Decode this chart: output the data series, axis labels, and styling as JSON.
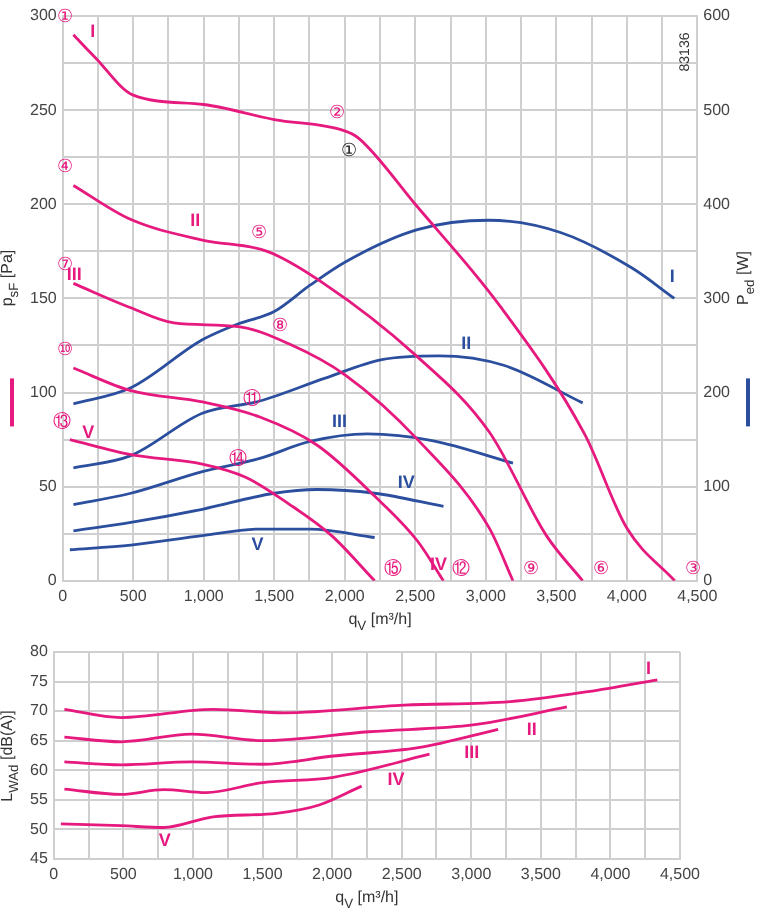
{
  "chart_data": [
    {
      "type": "line",
      "xlabel": "q$_{V}$ [m³/h]",
      "ylabel": "p$_{sF}$ [Pa]",
      "y2label": "P$_{ed}$ [W]",
      "xlim": [
        0,
        4500
      ],
      "xticks": [
        {
          "value": 0,
          "label": "0"
        },
        {
          "value": 250,
          "label": null
        },
        500,
        {
          "value": 750,
          "label": null
        },
        {
          "value": 1000,
          "label": "1,000"
        },
        {
          "value": 1250,
          "label": null
        },
        {
          "value": 1500,
          "label": "1,500"
        },
        {
          "value": 1750,
          "label": null
        },
        {
          "value": 2000,
          "label": "2,000"
        },
        {
          "value": 2250,
          "label": null
        },
        {
          "value": 2500,
          "label": "2,500"
        },
        {
          "value": 2750,
          "label": null
        },
        {
          "value": 3000,
          "label": "3,000"
        },
        {
          "value": 3250,
          "label": null
        },
        {
          "value": 3500,
          "label": "3,500"
        },
        {
          "value": 3750,
          "label": null
        },
        {
          "value": 4000,
          "label": "4,000"
        },
        {
          "value": 4250,
          "label": null
        },
        {
          "value": 4500,
          "label": "4,500"
        }
      ],
      "ylim": [
        0,
        300
      ],
      "yticks": [
        {
          "value": 0,
          "label": "0"
        },
        {
          "value": 25,
          "label": null
        },
        50,
        {
          "value": 75,
          "label": null
        },
        100,
        {
          "value": 125,
          "label": null
        },
        150,
        {
          "value": 175,
          "label": null
        },
        200,
        {
          "value": 225,
          "label": null
        },
        250,
        {
          "value": 275,
          "label": null
        },
        300
      ],
      "y2lim": [
        0,
        600
      ],
      "y2ticks": [
        {
          "value": 0,
          "label": "0"
        },
        100,
        200,
        300,
        400,
        500,
        600
      ],
      "grid": true,
      "series": [
        {
          "name": "I",
          "color": "#e6197e",
          "x": [
            76,
            230,
            500,
            1000,
            1500,
            2000,
            2100,
            2500,
            3100,
            3700,
            4000,
            4340
          ],
          "values": [
            290,
            278,
            258,
            253,
            245,
            239,
            235,
            200,
            146,
            78,
            28,
            0
          ]
        },
        {
          "name": "II",
          "color": "#e6197e",
          "x": [
            76,
            480,
            990,
            1450,
            1850,
            2500,
            3025,
            3430,
            3687
          ],
          "values": [
            210,
            192,
            181,
            175,
            158,
            120,
            79,
            24,
            0
          ]
        },
        {
          "name": "III",
          "color": "#e6197e",
          "x": [
            76,
            483,
            788,
            1246,
            1600,
            2009,
            2517,
            3025,
            3193
          ],
          "values": [
            158,
            145,
            137,
            135,
            126,
            109,
            75,
            28,
            0
          ]
        },
        {
          "name": "IV",
          "color": "#e6197e",
          "x": [
            76,
            483,
            990,
            1398,
            1805,
            2212,
            2517,
            2700
          ],
          "values": [
            113,
            101,
            95,
            87,
            72,
            45,
            21,
            0
          ]
        },
        {
          "name": "V",
          "color": "#e6197e",
          "x": [
            51,
            483,
            990,
            1297,
            1600,
            1907,
            2212
          ],
          "values": [
            75,
            67,
            62,
            55,
            41,
            24,
            0
          ]
        },
        {
          "name": "I",
          "axis": "y2",
          "color": "#2b4f9e",
          "x": [
            76,
            483,
            990,
            1246,
            1500,
            1754,
            2007,
            2515,
            3023,
            3530,
            4040,
            4337
          ],
          "values": [
            188,
            205,
            256,
            273,
            286,
            314,
            339,
            373,
            383,
            370,
            332,
            300
          ]
        },
        {
          "name": "II",
          "axis": "y2",
          "color": "#2b4f9e",
          "x": [
            76,
            483,
            990,
            1398,
            1856,
            2263,
            2670,
            3127,
            3687
          ],
          "values": [
            120,
            133,
            178,
            191,
            215,
            235,
            239,
            229,
            189
          ]
        },
        {
          "name": "III",
          "axis": "y2",
          "color": "#2b4f9e",
          "x": [
            76,
            483,
            990,
            1398,
            1754,
            2161,
            2619,
            3193
          ],
          "values": [
            81,
            93,
            116,
            130,
            148,
            156,
            149,
            125
          ]
        },
        {
          "name": "IV",
          "axis": "y2",
          "color": "#2b4f9e",
          "x": [
            76,
            483,
            990,
            1500,
            1805,
            2212,
            2700
          ],
          "values": [
            53,
            62,
            76,
            93,
            97,
            93,
            79
          ]
        },
        {
          "name": "V",
          "axis": "y2",
          "color": "#2b4f9e",
          "x": [
            51,
            483,
            990,
            1398,
            1754,
            2212
          ],
          "values": [
            33,
            38,
            48,
            55,
            55,
            46
          ]
        }
      ],
      "annotations": [
        "83136",
        {
          "text": "①",
          "x": 76,
          "y": 290
        },
        {
          "text": "②",
          "x": 2000,
          "y": 239
        },
        {
          "text": "③",
          "x": 4340,
          "y": 0
        },
        {
          "text": "④",
          "x": 76,
          "y": 210
        },
        {
          "text": "⑤",
          "x": 1450,
          "y": 175
        },
        {
          "text": "⑥",
          "x": 3687,
          "y": 0
        },
        {
          "text": "⑦",
          "x": 76,
          "y": 158
        },
        {
          "text": "⑧",
          "x": 1600,
          "y": 126
        },
        {
          "text": "⑨",
          "x": 3193,
          "y": 0
        },
        {
          "text": "⑩",
          "x": 76,
          "y": 113
        },
        {
          "text": "⑪",
          "x": 1398,
          "y": 87
        },
        {
          "text": "⑫",
          "x": 2700,
          "y": 0
        },
        {
          "text": "⑬",
          "x": 51,
          "y": 75
        },
        {
          "text": "⑭",
          "x": 1297,
          "y": 55
        },
        {
          "text": "⑮",
          "x": 2212,
          "y": 0
        },
        {
          "text": "①",
          "x": 2000,
          "y": 239
        }
      ]
    },
    {
      "type": "line",
      "xlabel": "q$_{V}$ [m³/h]",
      "ylabel": "L$_{WAd}$ [dB(A)]",
      "xlim": [
        0,
        4500
      ],
      "xticks": [
        {
          "value": 0,
          "label": "0"
        },
        {
          "value": 250,
          "label": null
        },
        500,
        {
          "value": 750,
          "label": null
        },
        {
          "value": 1000,
          "label": "1,000"
        },
        {
          "value": 1250,
          "label": null
        },
        {
          "value": 1500,
          "label": "1,500"
        },
        {
          "value": 1750,
          "label": null
        },
        {
          "value": 2000,
          "label": "2,000"
        },
        {
          "value": 2250,
          "label": null
        },
        {
          "value": 2500,
          "label": "2,500"
        },
        {
          "value": 2750,
          "label": null
        },
        {
          "value": 3000,
          "label": "3,000"
        },
        {
          "value": 3250,
          "label": null
        },
        {
          "value": 3500,
          "label": "3,500"
        },
        {
          "value": 3750,
          "label": null
        },
        {
          "value": 4000,
          "label": "4,000"
        },
        {
          "value": 4250,
          "label": null
        },
        {
          "value": 4500,
          "label": "4,500"
        }
      ],
      "ylim": [
        45,
        80
      ],
      "yticks": [
        45,
        50,
        55,
        60,
        65,
        70,
        75,
        80
      ],
      "grid": true,
      "series": [
        {
          "name": "I",
          "color": "#e6197e",
          "x": [
            76,
            483,
            1144,
            1653,
            2517,
            3280,
            3840,
            4337
          ],
          "values": [
            70.3,
            68.9,
            70.3,
            69.7,
            71,
            71.6,
            73.3,
            75.3
          ]
        },
        {
          "name": "II",
          "color": "#e6197e",
          "x": [
            76,
            483,
            990,
            1500,
            2263,
            3025,
            3687
          ],
          "values": [
            65.6,
            64.8,
            66.1,
            65,
            66.5,
            67.7,
            70.7
          ]
        },
        {
          "name": "III",
          "color": "#e6197e",
          "x": [
            76,
            483,
            990,
            1500,
            2009,
            2619,
            3193
          ],
          "values": [
            61.4,
            60.9,
            61.4,
            61,
            62.4,
            63.8,
            66.9
          ]
        },
        {
          "name": "IV",
          "color": "#e6197e",
          "x": [
            76,
            483,
            788,
            1093,
            1500,
            2009,
            2700
          ],
          "values": [
            56.8,
            55.9,
            56.7,
            56.2,
            57.9,
            58.8,
            62.7
          ]
        },
        {
          "name": "V",
          "color": "#e6197e",
          "x": [
            51,
            483,
            788,
            1144,
            1600,
            1907,
            2212
          ],
          "values": [
            50.9,
            50.6,
            50.3,
            52.1,
            52.7,
            54.1,
            57.3
          ]
        }
      ]
    }
  ]
}
